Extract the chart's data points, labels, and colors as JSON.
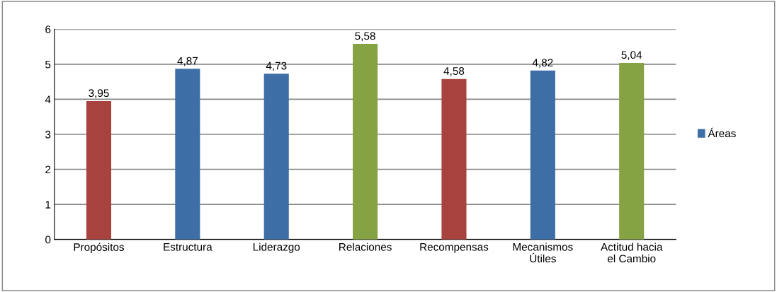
{
  "chart_data": {
    "type": "bar",
    "categories": [
      "Propósitos",
      "Estructura",
      "Liderazgo",
      "Relaciones",
      "Recompensas",
      "Mecanismos\nÚtiles",
      "Actitud hacia\nel Cambio"
    ],
    "series": [
      {
        "name": "Áreas",
        "color": "#3d6ea5",
        "values": [
          3.95,
          4.87,
          4.73,
          5.58,
          4.58,
          4.82,
          5.04
        ],
        "colors": [
          "#a8423f",
          "#3d6ea5",
          "#3d6ea5",
          "#86a344",
          "#a8423f",
          "#3d6ea5",
          "#86a344"
        ],
        "value_labels": [
          "3,95",
          "4,87",
          "4,73",
          "5,58",
          "4,58",
          "4,82",
          "5,04"
        ]
      }
    ],
    "ylim": [
      0,
      6
    ],
    "yticks": [
      0,
      1,
      2,
      3,
      4,
      5,
      6
    ],
    "grid": "y",
    "legend": "right"
  }
}
